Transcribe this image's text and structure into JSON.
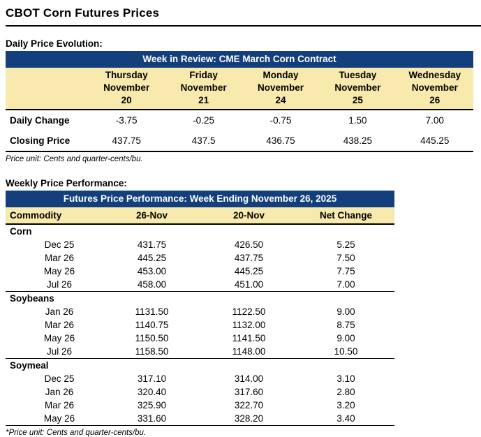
{
  "page": {
    "title": "CBOT Corn Futures Prices"
  },
  "colors": {
    "header_blue": "#143F7D",
    "header_tan": "#F8EAAD"
  },
  "daily": {
    "label": "Daily Price Evolution:",
    "table_title": "Week in Review: CME March Corn Contract",
    "columns": [
      "Thursday\nNovember\n20",
      "Friday\nNovember\n21",
      "Monday\nNovember\n24",
      "Tuesday\nNovember\n25",
      "Wednesday\nNovember\n26"
    ],
    "rows": [
      {
        "label": "Daily Change",
        "values": [
          "-3.75",
          "-0.25",
          "-0.75",
          "1.50",
          "7.00"
        ]
      },
      {
        "label": "Closing Price",
        "values": [
          "437.75",
          "437.5",
          "436.75",
          "438.25",
          "445.25"
        ]
      }
    ],
    "footnote": "Price unit: Cents and quarter-cents/bu."
  },
  "weekly": {
    "label": "Weekly Price Performance:",
    "table_title": "Futures Price Performance: Week Ending November 26, 2025",
    "columns": [
      "Commodity",
      "26-Nov",
      "20-Nov",
      "Net Change"
    ],
    "groups": [
      {
        "commodity": "Corn",
        "rows": [
          {
            "contract": "Dec 25",
            "values": [
              "431.75",
              "426.50",
              "5.25"
            ]
          },
          {
            "contract": "Mar 26",
            "values": [
              "445.25",
              "437.75",
              "7.50"
            ]
          },
          {
            "contract": "May 26",
            "values": [
              "453.00",
              "445.25",
              "7.75"
            ]
          },
          {
            "contract": "Jul 26",
            "values": [
              "458.00",
              "451.00",
              "7.00"
            ]
          }
        ]
      },
      {
        "commodity": "Soybeans",
        "rows": [
          {
            "contract": "Jan 26",
            "values": [
              "1131.50",
              "1122.50",
              "9.00"
            ]
          },
          {
            "contract": "Mar 26",
            "values": [
              "1140.75",
              "1132.00",
              "8.75"
            ]
          },
          {
            "contract": "May 26",
            "values": [
              "1150.50",
              "1141.50",
              "9.00"
            ]
          },
          {
            "contract": "Jul 26",
            "values": [
              "1158.50",
              "1148.00",
              "10.50"
            ]
          }
        ]
      },
      {
        "commodity": "Soymeal",
        "rows": [
          {
            "contract": "Dec 25",
            "values": [
              "317.10",
              "314.00",
              "3.10"
            ]
          },
          {
            "contract": "Jan 26",
            "values": [
              "320.40",
              "317.60",
              "2.80"
            ]
          },
          {
            "contract": "Mar 26",
            "values": [
              "325.90",
              "322.70",
              "3.20"
            ]
          },
          {
            "contract": "May 26",
            "values": [
              "331.60",
              "328.20",
              "3.40"
            ]
          }
        ]
      }
    ],
    "footnote": "*Price unit: Cents and quarter-cents/bu."
  }
}
